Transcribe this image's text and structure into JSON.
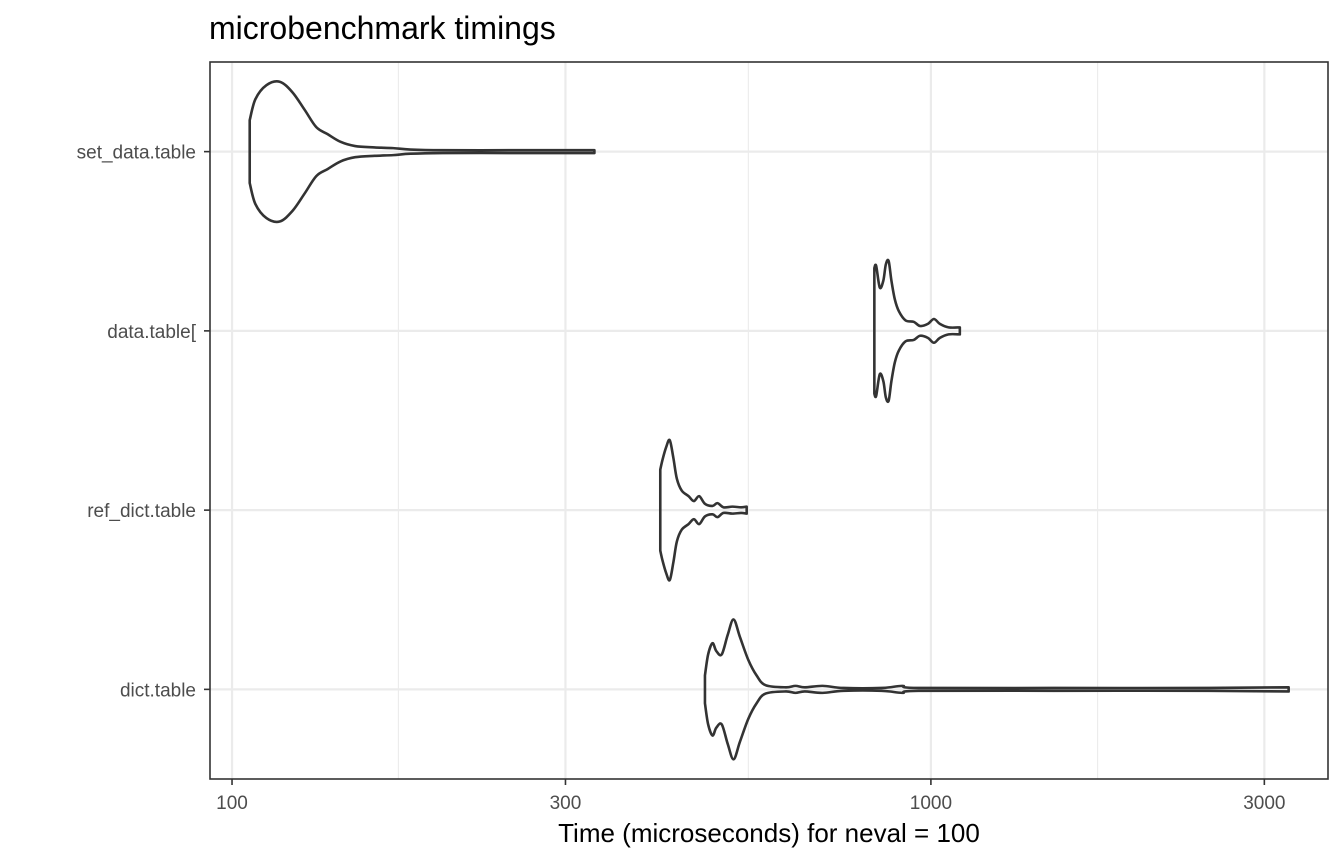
{
  "chart_data": {
    "type": "violin",
    "title": "microbenchmark timings",
    "xlabel": "Time (microseconds) for neval = 100",
    "ylabel": "",
    "x_scale": "log10",
    "xlim": [
      93,
      3700
    ],
    "x_ticks": [
      100,
      300,
      1000,
      3000
    ],
    "x_tick_labels": [
      "100",
      "300",
      "1000",
      "3000"
    ],
    "x_minor_ticks": [
      173,
      548,
      1732
    ],
    "grid": true,
    "categories": [
      "set_data.table",
      "data.table[",
      "ref_dict.table",
      "dict.table"
    ],
    "series": [
      {
        "expr": "set_data.table",
        "min": 106,
        "max": 330,
        "density": [
          [
            106,
            0.45
          ],
          [
            108,
            0.75
          ],
          [
            112,
            0.95
          ],
          [
            117,
            1.0
          ],
          [
            122,
            0.85
          ],
          [
            127,
            0.6
          ],
          [
            132,
            0.35
          ],
          [
            137,
            0.25
          ],
          [
            143,
            0.14
          ],
          [
            150,
            0.08
          ],
          [
            160,
            0.06
          ],
          [
            170,
            0.05
          ],
          [
            180,
            0.03
          ],
          [
            200,
            0.02
          ],
          [
            250,
            0.02
          ],
          [
            300,
            0.02
          ],
          [
            330,
            0.02
          ]
        ]
      },
      {
        "expr": "data.table[",
        "min": 830,
        "max": 1100,
        "density": [
          [
            830,
            0.9
          ],
          [
            835,
            0.93
          ],
          [
            845,
            0.62
          ],
          [
            855,
            0.72
          ],
          [
            862,
            0.95
          ],
          [
            870,
            1.0
          ],
          [
            878,
            0.72
          ],
          [
            888,
            0.45
          ],
          [
            900,
            0.28
          ],
          [
            920,
            0.15
          ],
          [
            945,
            0.13
          ],
          [
            965,
            0.07
          ],
          [
            990,
            0.1
          ],
          [
            1010,
            0.17
          ],
          [
            1030,
            0.1
          ],
          [
            1060,
            0.05
          ],
          [
            1100,
            0.05
          ]
        ]
      },
      {
        "expr": "ref_dict.table",
        "min": 410,
        "max": 545,
        "density": [
          [
            410,
            0.58
          ],
          [
            413,
            0.72
          ],
          [
            418,
            0.9
          ],
          [
            423,
            1.0
          ],
          [
            428,
            0.75
          ],
          [
            433,
            0.45
          ],
          [
            440,
            0.28
          ],
          [
            450,
            0.2
          ],
          [
            458,
            0.13
          ],
          [
            466,
            0.2
          ],
          [
            475,
            0.09
          ],
          [
            487,
            0.06
          ],
          [
            495,
            0.1
          ],
          [
            505,
            0.04
          ],
          [
            520,
            0.05
          ],
          [
            535,
            0.04
          ],
          [
            545,
            0.05
          ]
        ]
      },
      {
        "expr": "dict.table",
        "min": 475,
        "max": 3250,
        "density": [
          [
            475,
            0.2
          ],
          [
            480,
            0.5
          ],
          [
            487,
            0.66
          ],
          [
            493,
            0.55
          ],
          [
            502,
            0.5
          ],
          [
            512,
            0.78
          ],
          [
            522,
            1.0
          ],
          [
            533,
            0.75
          ],
          [
            548,
            0.42
          ],
          [
            563,
            0.2
          ],
          [
            580,
            0.06
          ],
          [
            620,
            0.03
          ],
          [
            640,
            0.05
          ],
          [
            660,
            0.03
          ],
          [
            700,
            0.05
          ],
          [
            750,
            0.02
          ],
          [
            850,
            0.02
          ],
          [
            910,
            0.05
          ],
          [
            960,
            0.02
          ],
          [
            1500,
            0.02
          ],
          [
            2500,
            0.02
          ],
          [
            3250,
            0.03
          ]
        ]
      }
    ]
  }
}
